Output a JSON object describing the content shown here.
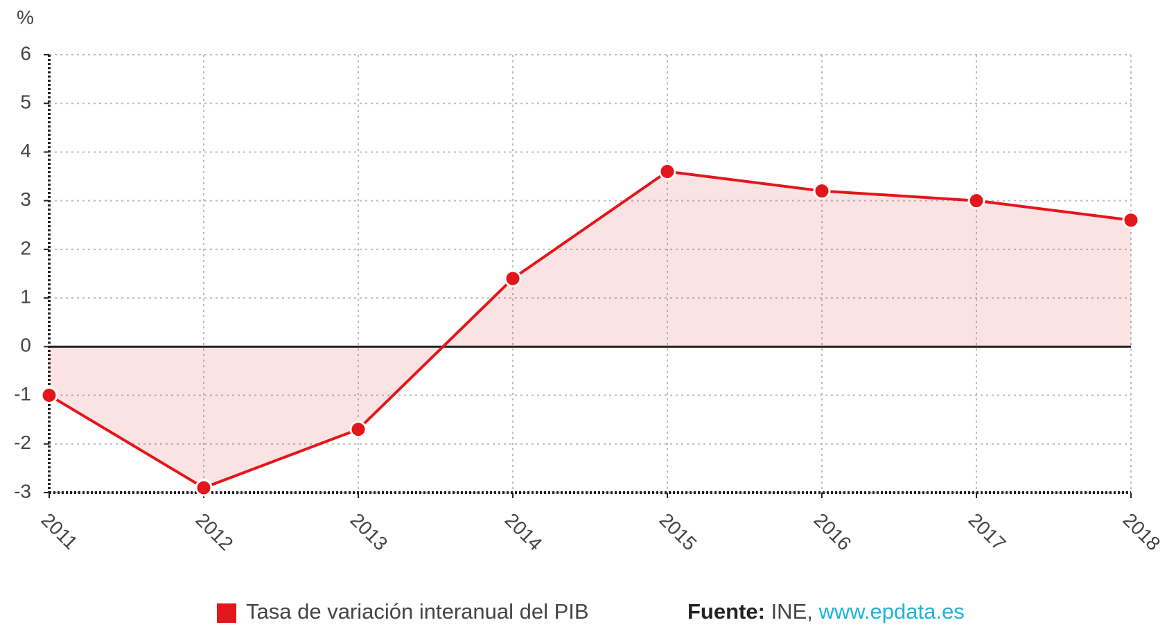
{
  "chart_data": {
    "type": "line",
    "ylabel": "%",
    "categories": [
      "2011",
      "2012",
      "2013",
      "2014",
      "2015",
      "2016",
      "2017",
      "2018"
    ],
    "series": [
      {
        "name": "Tasa de variación interanual del PIB",
        "color": "#e3161b",
        "values": [
          -1,
          -2.9,
          -1.7,
          1.4,
          3.6,
          3.2,
          3.0,
          2.6
        ]
      }
    ],
    "ylim": [
      -3,
      6
    ],
    "yticks": [
      -3,
      -2,
      -1,
      0,
      1,
      2,
      3,
      4,
      5,
      6
    ],
    "grid": true,
    "source": {
      "label": "Fuente:",
      "text": "INE,",
      "link": "www.epdata.es"
    }
  }
}
